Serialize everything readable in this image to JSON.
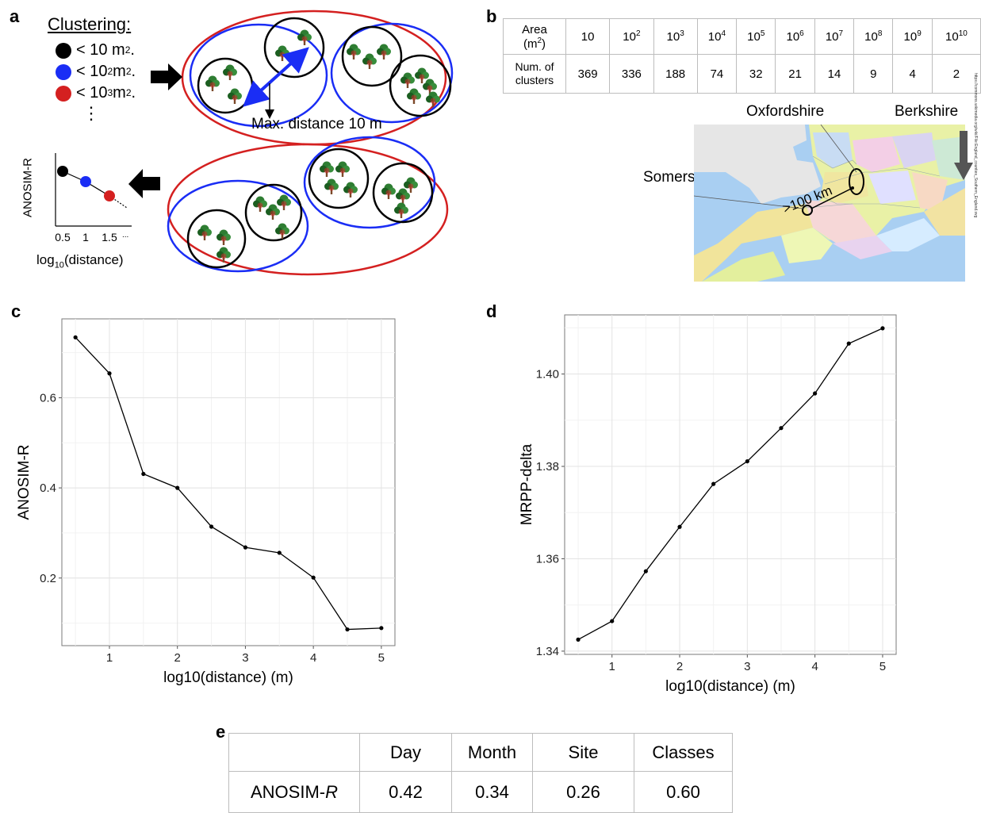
{
  "panel_labels": {
    "a": "a",
    "b": "b",
    "c": "c",
    "d": "d",
    "e": "e"
  },
  "panel_a": {
    "clustering_title": "Clustering:",
    "legend": [
      {
        "text_pre": "< 10 m",
        "sup": "2",
        "text_post": ".",
        "color": "#000000"
      },
      {
        "text_pre": "< 10",
        "sup": "2",
        "text_post": " m",
        "sup2": "2",
        "text_post2": ".",
        "color": "#1a2df5"
      },
      {
        "text_pre": "< 10",
        "sup": "3",
        "text_post": " m",
        "sup2": "2",
        "text_post2": ".",
        "color": "#d42020"
      }
    ],
    "ellipsis": "⋮",
    "max_distance_label": "Max. distance 10 m",
    "mini_ylabel": "ANOSIM-R",
    "mini_xticks": [
      "0.5",
      "1",
      "1.5",
      "..."
    ],
    "mini_xlabel_pre": "log",
    "mini_xlabel_sub": "10",
    "mini_xlabel_post": "(distance)",
    "colors": {
      "small": "#000000",
      "medium": "#1a2df5",
      "large": "#d42020",
      "tree": "#2e7d32"
    }
  },
  "panel_b": {
    "header_area": "Area",
    "header_area_unit_pre": "(m",
    "header_area_unit_sup": "2",
    "header_area_unit_post": ")",
    "areas": [
      {
        "base": "10",
        "exp": ""
      },
      {
        "base": "10",
        "exp": "2"
      },
      {
        "base": "10",
        "exp": "3"
      },
      {
        "base": "10",
        "exp": "4"
      },
      {
        "base": "10",
        "exp": "5"
      },
      {
        "base": "10",
        "exp": "6"
      },
      {
        "base": "10",
        "exp": "7"
      },
      {
        "base": "10",
        "exp": "8"
      },
      {
        "base": "10",
        "exp": "9"
      },
      {
        "base": "10",
        "exp": "10"
      }
    ],
    "row2_label": "Num. of clusters",
    "counts": [
      "369",
      "336",
      "188",
      "74",
      "32",
      "21",
      "14",
      "9",
      "4",
      "2"
    ],
    "map_oxfordshire": "Oxfordshire",
    "map_berkshire": "Berkshire",
    "map_somerset": "Somerset",
    "map_distance": ">100 km",
    "map_credit": "https://commons.wikimedia.org/wiki/File:England_counties_Southern_England.svg"
  },
  "chart_data": [
    {
      "id": "c",
      "type": "line",
      "xlabel": "log10(distance) (m)",
      "ylabel": "ANOSIM-R",
      "x": [
        0.5,
        1,
        1.5,
        2,
        2.5,
        3,
        3.5,
        4,
        4.5,
        5
      ],
      "values": [
        0.734,
        0.654,
        0.431,
        0.4,
        0.314,
        0.268,
        0.256,
        0.201,
        0.086,
        0.089
      ],
      "xlim": [
        0.3,
        5.2
      ],
      "ylim": [
        0.05,
        0.775
      ],
      "xticks": [
        1,
        2,
        3,
        4,
        5
      ],
      "yticks": [
        0.2,
        0.4,
        0.6
      ],
      "ytick_labels": [
        "0.2",
        "0.4",
        "0.6"
      ],
      "grid": true
    },
    {
      "id": "d",
      "type": "line",
      "xlabel": "log10(distance) (m)",
      "ylabel": "MRPP-delta",
      "x": [
        0.5,
        1,
        1.5,
        2,
        2.5,
        3,
        3.5,
        4,
        4.5,
        5
      ],
      "values": [
        1.3425,
        1.3465,
        1.3573,
        1.3669,
        1.3762,
        1.3811,
        1.3883,
        1.3958,
        1.4066,
        1.4099
      ],
      "xlim": [
        0.3,
        5.2
      ],
      "ylim": [
        1.3393,
        1.4128
      ],
      "xticks": [
        1,
        2,
        3,
        4,
        5
      ],
      "yticks": [
        1.34,
        1.36,
        1.38,
        1.4
      ],
      "ytick_labels": [
        "1.34",
        "1.36",
        "1.38",
        "1.40"
      ],
      "grid": true
    }
  ],
  "panel_e": {
    "headers": [
      "",
      "Day",
      "Month",
      "Site",
      "Classes"
    ],
    "row_label_pre": "ANOSIM-",
    "row_label_italic": "R",
    "values": [
      "0.42",
      "0.34",
      "0.26",
      "0.60"
    ]
  }
}
